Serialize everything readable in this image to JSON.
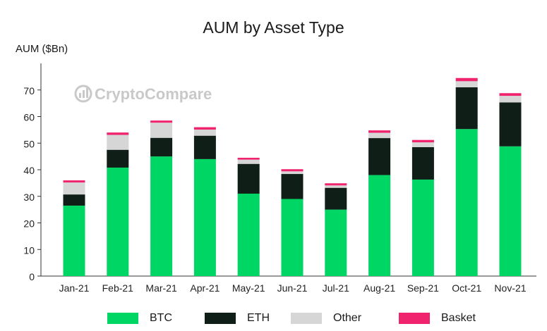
{
  "chart_data": {
    "type": "bar",
    "stacked": true,
    "title": "AUM by Asset Type",
    "ylabel": "AUM ($Bn)",
    "xlabel": "",
    "ylim": [
      0,
      80
    ],
    "yticks": [
      0,
      10,
      20,
      30,
      40,
      50,
      60,
      70
    ],
    "grid": false,
    "legend_position": "bottom",
    "categories": [
      "Jan-21",
      "Feb-21",
      "Mar-21",
      "Apr-21",
      "May-21",
      "Jun-21",
      "Jul-21",
      "Aug-21",
      "Sep-21",
      "Oct-21",
      "Nov-21"
    ],
    "series": [
      {
        "name": "BTC",
        "color": "#00d664",
        "values": [
          26.5,
          40.8,
          45.0,
          44.0,
          31.0,
          29.0,
          25.0,
          38.0,
          36.3,
          55.3,
          48.8
        ]
      },
      {
        "name": "ETH",
        "color": "#0f1e17",
        "values": [
          4.2,
          6.7,
          7.0,
          8.8,
          11.2,
          9.4,
          8.2,
          13.9,
          12.2,
          15.7,
          16.5
        ]
      },
      {
        "name": "Other",
        "color": "#d6d6d6",
        "values": [
          4.5,
          5.6,
          5.7,
          2.3,
          1.6,
          1.0,
          0.9,
          2.0,
          1.8,
          2.3,
          2.5
        ]
      },
      {
        "name": "Basket",
        "color": "#f0236e",
        "values": [
          0.8,
          0.9,
          0.8,
          0.9,
          0.7,
          0.8,
          0.8,
          0.9,
          0.9,
          1.2,
          1.0
        ]
      }
    ]
  },
  "watermark": {
    "text": "CryptoCompare",
    "icon": "cryptocompare-logo-icon"
  }
}
